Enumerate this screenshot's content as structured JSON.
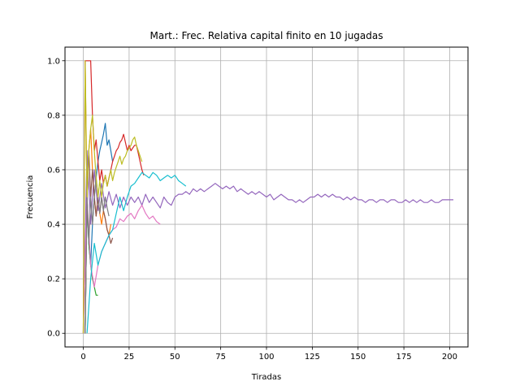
{
  "chart_data": {
    "type": "line",
    "title": "Mart.: Frec. Relativa capital finito en 10 jugadas",
    "xlabel": "Tiradas",
    "ylabel": "Frecuencia",
    "xlim": [
      -10,
      210
    ],
    "ylim": [
      -0.05,
      1.05
    ],
    "xticks": [
      0,
      25,
      50,
      75,
      100,
      125,
      150,
      175,
      200
    ],
    "yticks": [
      0.0,
      0.2,
      0.4,
      0.6,
      0.8,
      1.0
    ],
    "xtick_labels": [
      "0",
      "25",
      "50",
      "75",
      "100",
      "125",
      "150",
      "175",
      "200"
    ],
    "ytick_labels": [
      "0.0",
      "0.2",
      "0.4",
      "0.6",
      "0.8",
      "1.0"
    ],
    "grid": true,
    "series": [
      {
        "color": "#1f77b4",
        "x": [
          1,
          2,
          3,
          4,
          5,
          6,
          7,
          8,
          9,
          10,
          11,
          12,
          13,
          14,
          15,
          16
        ],
        "y": [
          0.0,
          0.5,
          0.33,
          0.25,
          0.4,
          0.5,
          0.57,
          0.63,
          0.67,
          0.7,
          0.73,
          0.77,
          0.69,
          0.71,
          0.67,
          0.63
        ]
      },
      {
        "color": "#ff7f0e",
        "x": [
          1,
          2,
          3,
          4,
          5,
          6,
          7,
          8,
          9,
          10,
          11,
          12,
          13,
          14,
          15
        ],
        "y": [
          1.0,
          0.5,
          0.67,
          0.75,
          0.6,
          0.5,
          0.43,
          0.5,
          0.44,
          0.4,
          0.45,
          0.42,
          0.38,
          0.36,
          0.4
        ]
      },
      {
        "color": "#2ca02c",
        "x": [
          1,
          2,
          3,
          4,
          5,
          6,
          7,
          8
        ],
        "y": [
          0.0,
          0.5,
          0.33,
          0.25,
          0.2,
          0.17,
          0.14,
          0.14
        ]
      },
      {
        "color": "#d62728",
        "x": [
          0,
          1,
          2,
          3,
          4,
          5,
          6,
          7,
          8,
          9,
          10,
          11,
          12,
          13,
          14,
          15,
          16,
          17,
          18,
          19,
          20,
          21,
          22,
          23,
          24,
          25,
          26,
          27,
          28,
          29,
          30,
          31,
          32,
          33
        ],
        "y": [
          0.0,
          1.0,
          1.0,
          1.0,
          1.0,
          0.8,
          0.67,
          0.71,
          0.63,
          0.56,
          0.6,
          0.55,
          0.58,
          0.54,
          0.57,
          0.6,
          0.63,
          0.65,
          0.67,
          0.68,
          0.7,
          0.71,
          0.73,
          0.7,
          0.67,
          0.69,
          0.67,
          0.68,
          0.69,
          0.69,
          0.66,
          0.63,
          0.6,
          0.58
        ]
      },
      {
        "color": "#9467bd",
        "x": [
          0,
          2,
          4,
          6,
          8,
          10,
          12,
          14,
          16,
          18,
          20,
          22,
          24,
          26,
          28,
          30,
          32,
          34,
          36,
          38,
          40,
          42,
          44,
          46,
          48,
          50,
          52,
          54,
          56,
          58,
          60,
          62,
          64,
          66,
          68,
          70,
          72,
          74,
          76,
          78,
          80,
          82,
          84,
          86,
          88,
          90,
          92,
          94,
          96,
          98,
          100,
          102,
          104,
          106,
          108,
          110,
          112,
          114,
          116,
          118,
          120,
          122,
          124,
          126,
          128,
          130,
          132,
          134,
          136,
          138,
          140,
          142,
          144,
          146,
          148,
          150,
          152,
          154,
          156,
          158,
          160,
          162,
          164,
          166,
          168,
          170,
          172,
          174,
          176,
          178,
          180,
          182,
          184,
          186,
          188,
          190,
          192,
          194,
          196,
          198,
          200,
          202
        ],
        "y": [
          0.0,
          0.67,
          0.4,
          0.6,
          0.45,
          0.55,
          0.46,
          0.52,
          0.47,
          0.51,
          0.46,
          0.5,
          0.47,
          0.5,
          0.48,
          0.5,
          0.47,
          0.51,
          0.48,
          0.5,
          0.48,
          0.46,
          0.5,
          0.48,
          0.47,
          0.5,
          0.51,
          0.51,
          0.52,
          0.51,
          0.53,
          0.52,
          0.53,
          0.52,
          0.53,
          0.54,
          0.55,
          0.54,
          0.53,
          0.54,
          0.53,
          0.54,
          0.52,
          0.53,
          0.52,
          0.51,
          0.52,
          0.51,
          0.52,
          0.51,
          0.5,
          0.51,
          0.49,
          0.5,
          0.51,
          0.5,
          0.49,
          0.49,
          0.48,
          0.49,
          0.48,
          0.49,
          0.5,
          0.5,
          0.51,
          0.5,
          0.51,
          0.5,
          0.51,
          0.5,
          0.5,
          0.49,
          0.5,
          0.49,
          0.5,
          0.49,
          0.49,
          0.48,
          0.49,
          0.49,
          0.48,
          0.49,
          0.49,
          0.48,
          0.49,
          0.49,
          0.48,
          0.48,
          0.49,
          0.48,
          0.49,
          0.48,
          0.49,
          0.48,
          0.48,
          0.49,
          0.48,
          0.48,
          0.49,
          0.49,
          0.49,
          0.49
        ]
      },
      {
        "color": "#8c564b",
        "x": [
          1,
          2,
          3,
          4,
          5,
          6,
          7,
          8,
          9,
          10,
          11,
          12,
          13,
          14,
          15,
          16
        ],
        "y": [
          0.0,
          0.5,
          0.67,
          0.5,
          0.6,
          0.5,
          0.43,
          0.5,
          0.44,
          0.5,
          0.45,
          0.42,
          0.38,
          0.36,
          0.33,
          0.35
        ]
      },
      {
        "color": "#e377c2",
        "x": [
          0,
          2,
          4,
          6,
          8,
          10,
          12,
          14,
          16,
          18,
          20,
          22,
          24,
          26,
          28,
          30,
          32,
          34,
          36,
          38,
          40,
          42
        ],
        "y": [
          0.0,
          0.5,
          0.25,
          0.17,
          0.25,
          0.3,
          0.33,
          0.36,
          0.38,
          0.39,
          0.42,
          0.41,
          0.43,
          0.44,
          0.42,
          0.45,
          0.47,
          0.44,
          0.42,
          0.43,
          0.41,
          0.4
        ]
      },
      {
        "color": "#7f7f7f",
        "x": [
          1,
          2,
          3,
          4,
          5,
          6,
          7,
          8,
          9,
          10,
          11,
          12,
          13,
          14
        ],
        "y": [
          0.0,
          0.5,
          0.33,
          0.5,
          0.4,
          0.5,
          0.57,
          0.5,
          0.44,
          0.5,
          0.45,
          0.5,
          0.46,
          0.43
        ]
      },
      {
        "color": "#bcbd22",
        "x": [
          0,
          1,
          2,
          3,
          4,
          5,
          6,
          7,
          8,
          9,
          10,
          11,
          12,
          13,
          14,
          15,
          16,
          17,
          18,
          19,
          20,
          21,
          22,
          23,
          24,
          25,
          26,
          27,
          28,
          29,
          30,
          31,
          32
        ],
        "y": [
          0.0,
          1.0,
          0.5,
          0.67,
          0.75,
          0.8,
          0.67,
          0.57,
          0.5,
          0.56,
          0.5,
          0.55,
          0.58,
          0.54,
          0.57,
          0.6,
          0.56,
          0.59,
          0.61,
          0.63,
          0.65,
          0.62,
          0.64,
          0.65,
          0.67,
          0.68,
          0.69,
          0.71,
          0.72,
          0.69,
          0.67,
          0.65,
          0.63
        ]
      },
      {
        "color": "#17becf",
        "x": [
          2,
          4,
          6,
          8,
          10,
          12,
          14,
          16,
          18,
          20,
          22,
          24,
          26,
          28,
          30,
          32,
          34,
          36,
          38,
          40,
          42,
          44,
          46,
          48,
          50,
          52,
          54,
          56
        ],
        "y": [
          0.0,
          0.2,
          0.33,
          0.25,
          0.3,
          0.33,
          0.36,
          0.38,
          0.44,
          0.5,
          0.45,
          0.5,
          0.54,
          0.55,
          0.57,
          0.59,
          0.58,
          0.57,
          0.59,
          0.58,
          0.56,
          0.57,
          0.58,
          0.57,
          0.58,
          0.56,
          0.55,
          0.54
        ]
      }
    ]
  }
}
